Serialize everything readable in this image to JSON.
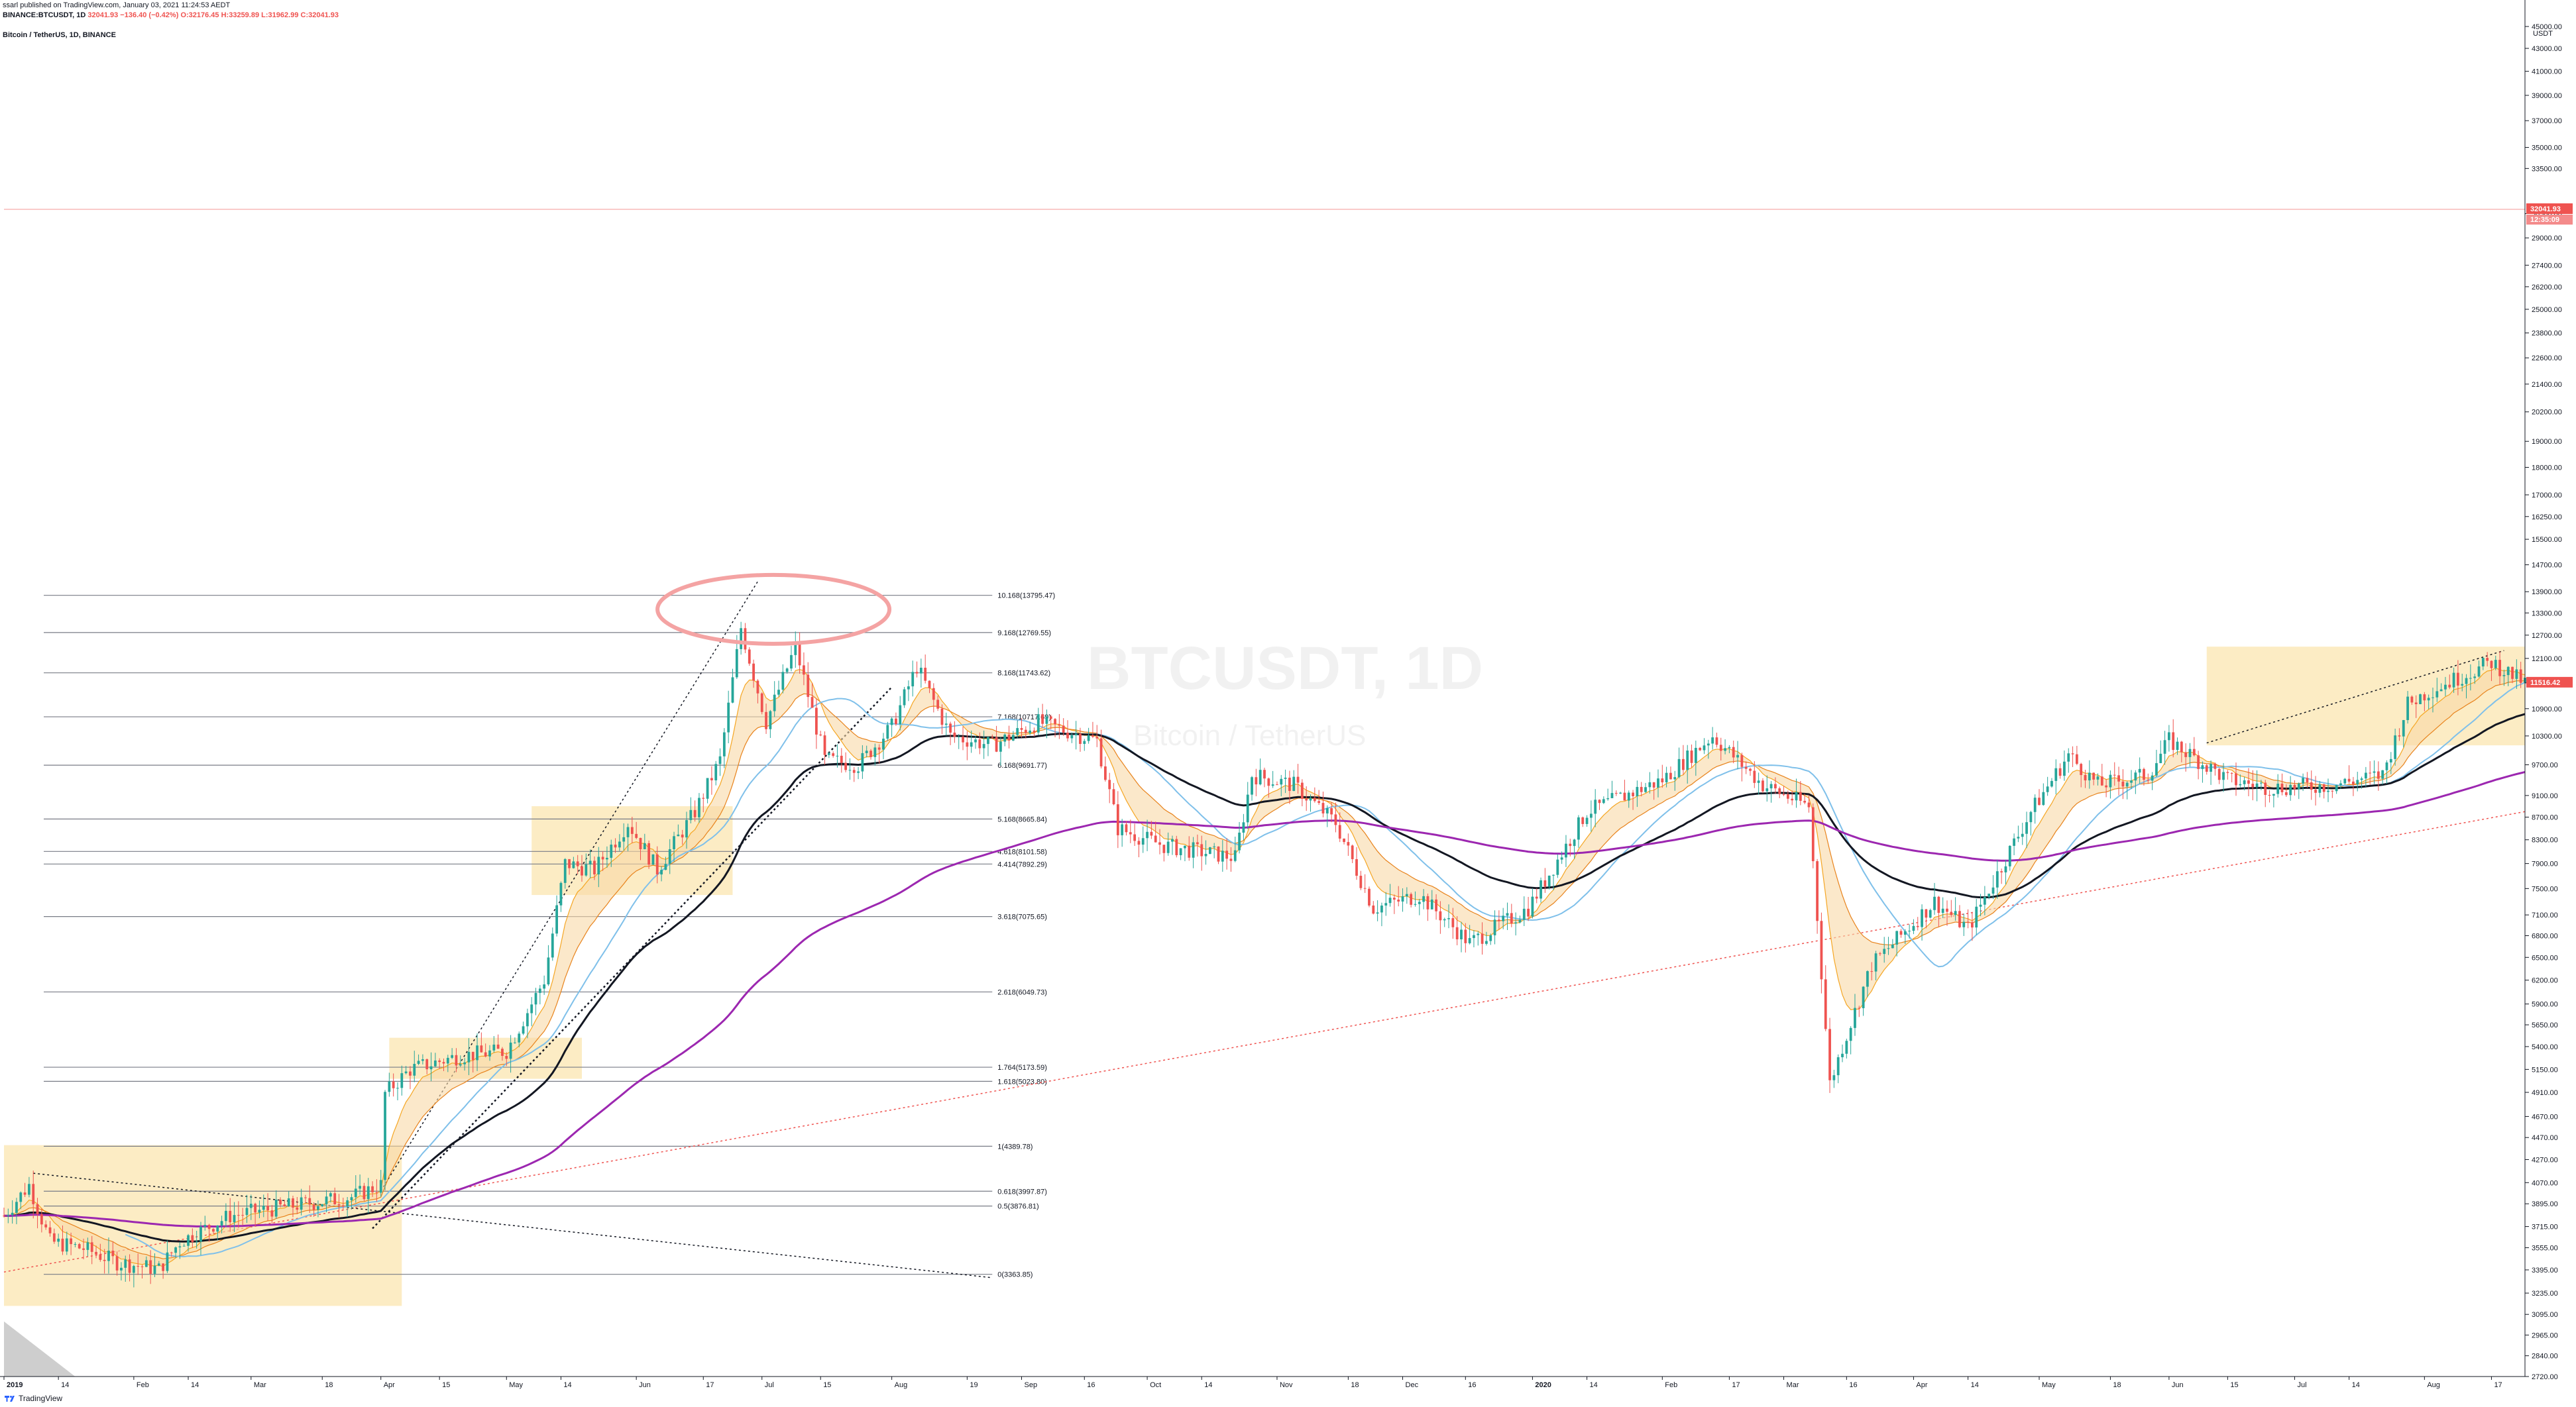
{
  "header": {
    "published": "ssarl published on TradingView.com, January 03, 2021 11:24:53 AEDT",
    "symbol_line": {
      "symbol": "BINANCE:BTCUSDT, 1D",
      "last": "32041.93",
      "change": "−136.40 (−0.42%)",
      "open": "O:32176.45",
      "high": "H:33259.89",
      "low": "L:31962.99",
      "close": "C:32041.93"
    },
    "pane_title": "Bitcoin / TetherUS, 1D, BINANCE"
  },
  "watermark": {
    "symbol": "BTCUSDT, 1D",
    "name": "Bitcoin / TetherUS"
  },
  "footer": {
    "brand": "TradingView"
  },
  "colors": {
    "up": "#26a69a",
    "down": "#ef5350",
    "ema_fast": "#f5a623",
    "ema_slow": "#e8831c",
    "ma_blue": "#7fc0ea",
    "ma_black": "#131722",
    "ma_purple": "#9c27b0",
    "box": "#fbe5b0"
  },
  "chart_data": {
    "type": "candlestick",
    "title": "Bitcoin / TetherUS, 1D, BINANCE",
    "y_scale": "log",
    "ylim": [
      2720,
      45000
    ],
    "y_unit": "USDT",
    "y_ticks": [
      45000,
      43000,
      41000,
      39000,
      37000,
      35000,
      33500,
      30500,
      29000,
      27400,
      26200,
      25000,
      23800,
      22600,
      21400,
      20200,
      19000,
      18000,
      17000,
      16250,
      15500,
      14700,
      13900,
      13300,
      12700,
      12100,
      11500,
      10900,
      10300,
      9700,
      9100,
      8700,
      8300,
      7900,
      7500,
      7100,
      6800,
      6500,
      6200,
      5900,
      5650,
      5400,
      5150,
      4910,
      4670,
      4470,
      4270,
      4070,
      3895,
      3715,
      3555,
      3395,
      3235,
      3095,
      2965,
      2840,
      2720
    ],
    "x_start": "2019-01-01",
    "x_end": "2020-08-25",
    "x_ticks": [
      {
        "date": "2019-01-01",
        "label": "2019"
      },
      {
        "date": "2019-01-14",
        "label": "14"
      },
      {
        "date": "2019-02-01",
        "label": "Feb"
      },
      {
        "date": "2019-02-14",
        "label": "14"
      },
      {
        "date": "2019-03-01",
        "label": "Mar"
      },
      {
        "date": "2019-03-18",
        "label": "18"
      },
      {
        "date": "2019-04-01",
        "label": "Apr"
      },
      {
        "date": "2019-04-15",
        "label": "15"
      },
      {
        "date": "2019-05-01",
        "label": "May"
      },
      {
        "date": "2019-05-14",
        "label": "14"
      },
      {
        "date": "2019-06-01",
        "label": "Jun"
      },
      {
        "date": "2019-06-17",
        "label": "17"
      },
      {
        "date": "2019-07-01",
        "label": "Jul"
      },
      {
        "date": "2019-07-15",
        "label": "15"
      },
      {
        "date": "2019-08-01",
        "label": "Aug"
      },
      {
        "date": "2019-08-19",
        "label": "19"
      },
      {
        "date": "2019-09-01",
        "label": "Sep"
      },
      {
        "date": "2019-09-16",
        "label": "16"
      },
      {
        "date": "2019-10-01",
        "label": "Oct"
      },
      {
        "date": "2019-10-14",
        "label": "14"
      },
      {
        "date": "2019-11-01",
        "label": "Nov"
      },
      {
        "date": "2019-11-18",
        "label": "18"
      },
      {
        "date": "2019-12-01",
        "label": "Dec"
      },
      {
        "date": "2019-12-16",
        "label": "16"
      },
      {
        "date": "2020-01-01",
        "label": "2020"
      },
      {
        "date": "2020-01-14",
        "label": "14"
      },
      {
        "date": "2020-02-01",
        "label": "Feb"
      },
      {
        "date": "2020-02-17",
        "label": "17"
      },
      {
        "date": "2020-03-01",
        "label": "Mar"
      },
      {
        "date": "2020-03-16",
        "label": "16"
      },
      {
        "date": "2020-04-01",
        "label": "Apr"
      },
      {
        "date": "2020-04-14",
        "label": "14"
      },
      {
        "date": "2020-05-01",
        "label": "May"
      },
      {
        "date": "2020-05-18",
        "label": "18"
      },
      {
        "date": "2020-06-01",
        "label": "Jun"
      },
      {
        "date": "2020-06-15",
        "label": "15"
      },
      {
        "date": "2020-07-01",
        "label": "Jul"
      },
      {
        "date": "2020-07-14",
        "label": "14"
      },
      {
        "date": "2020-08-01",
        "label": "Aug"
      },
      {
        "date": "2020-08-17",
        "label": "17"
      }
    ],
    "price_path": [
      [
        "2019-01-01",
        3800
      ],
      [
        "2019-01-07",
        4050
      ],
      [
        "2019-01-12",
        3600
      ],
      [
        "2019-01-20",
        3550
      ],
      [
        "2019-01-28",
        3450
      ],
      [
        "2019-02-07",
        3400
      ],
      [
        "2019-02-12",
        3600
      ],
      [
        "2019-02-24",
        3800
      ],
      [
        "2019-03-05",
        3850
      ],
      [
        "2019-03-15",
        3900
      ],
      [
        "2019-03-25",
        3950
      ],
      [
        "2019-04-01",
        4050
      ],
      [
        "2019-04-02",
        4900
      ],
      [
        "2019-04-08",
        5150
      ],
      [
        "2019-04-20",
        5300
      ],
      [
        "2019-05-01",
        5350
      ],
      [
        "2019-05-10",
        6200
      ],
      [
        "2019-05-15",
        7900
      ],
      [
        "2019-05-22",
        7800
      ],
      [
        "2019-05-30",
        8600
      ],
      [
        "2019-06-06",
        7800
      ],
      [
        "2019-06-15",
        8800
      ],
      [
        "2019-06-21",
        9800
      ],
      [
        "2019-06-26",
        12900
      ],
      [
        "2019-07-02",
        10600
      ],
      [
        "2019-07-09",
        12400
      ],
      [
        "2019-07-16",
        9800
      ],
      [
        "2019-07-24",
        9700
      ],
      [
        "2019-08-01",
        10500
      ],
      [
        "2019-08-07",
        11900
      ],
      [
        "2019-08-15",
        10300
      ],
      [
        "2019-08-25",
        10100
      ],
      [
        "2019-09-05",
        10600
      ],
      [
        "2019-09-19",
        10200
      ],
      [
        "2019-09-24",
        8500
      ],
      [
        "2019-10-05",
        8200
      ],
      [
        "2019-10-22",
        8000
      ],
      [
        "2019-10-26",
        9500
      ],
      [
        "2019-11-05",
        9300
      ],
      [
        "2019-11-15",
        8600
      ],
      [
        "2019-11-24",
        7200
      ],
      [
        "2019-12-05",
        7400
      ],
      [
        "2019-12-17",
        6700
      ],
      [
        "2019-12-31",
        7200
      ],
      [
        "2020-01-14",
        8800
      ],
      [
        "2020-02-01",
        9400
      ],
      [
        "2020-02-13",
        10300
      ],
      [
        "2020-02-25",
        9300
      ],
      [
        "2020-03-07",
        8900
      ],
      [
        "2020-03-12",
        5000
      ],
      [
        "2020-03-15",
        5400
      ],
      [
        "2020-03-22",
        6400
      ],
      [
        "2020-04-06",
        7300
      ],
      [
        "2020-04-14",
        6900
      ],
      [
        "2020-04-29",
        8800
      ],
      [
        "2020-05-08",
        9900
      ],
      [
        "2020-05-15",
        9300
      ],
      [
        "2020-05-27",
        9500
      ],
      [
        "2020-06-01",
        10200
      ],
      [
        "2020-06-15",
        9400
      ],
      [
        "2020-06-25",
        9250
      ],
      [
        "2020-07-10",
        9300
      ],
      [
        "2020-07-22",
        9500
      ],
      [
        "2020-07-28",
        11000
      ],
      [
        "2020-08-02",
        11300
      ],
      [
        "2020-08-17",
        12000
      ],
      [
        "2020-08-25",
        11500
      ]
    ],
    "last_price": "11516.42",
    "current_price_tag": {
      "price": "32041.93",
      "countdown": "12:35:09",
      "y_value": 32041.93
    },
    "fib_levels": [
      {
        "label": "10.168(13795.47)",
        "price": 13795.47
      },
      {
        "label": "9.168(12769.55)",
        "price": 12769.55
      },
      {
        "label": "8.168(11743.62)",
        "price": 11743.62
      },
      {
        "label": "7.168(10717.69)",
        "price": 10717.69
      },
      {
        "label": "6.168(9691.77)",
        "price": 9691.77
      },
      {
        "label": "5.168(8665.84)",
        "price": 8665.84
      },
      {
        "label": "4.618(8101.58)",
        "price": 8101.58
      },
      {
        "label": "4.414(7892.29)",
        "price": 7892.29
      },
      {
        "label": "3.618(7075.65)",
        "price": 7075.65
      },
      {
        "label": "2.618(6049.73)",
        "price": 6049.73
      },
      {
        "label": "1.764(5173.59)",
        "price": 5173.59
      },
      {
        "label": "1.618(5023.80)",
        "price": 5023.8
      },
      {
        "label": "1(4389.78)",
        "price": 4389.78
      },
      {
        "label": "0.618(3997.87)",
        "price": 3997.87
      },
      {
        "label": "0.5(3876.81)",
        "price": 3876.81
      },
      {
        "label": "0(3363.85)",
        "price": 3363.85
      }
    ],
    "fib_range": {
      "start": "2019-01-01",
      "end": "2019-08-25"
    },
    "highlight_boxes": [
      {
        "x0": "2019-01-01",
        "x1": "2019-04-06",
        "y0": 3150,
        "y1": 4400
      },
      {
        "x0": "2019-04-03",
        "x1": "2019-05-19",
        "y0": 5050,
        "y1": 5500
      },
      {
        "x0": "2019-05-07",
        "x1": "2019-06-24",
        "y0": 7400,
        "y1": 8900
      },
      {
        "x0": "2020-06-10",
        "x1": "2020-08-25",
        "y0": 10100,
        "y1": 12400
      }
    ],
    "annotation_ellipse": {
      "date": "2019-06-29",
      "price": 13400
    }
  }
}
